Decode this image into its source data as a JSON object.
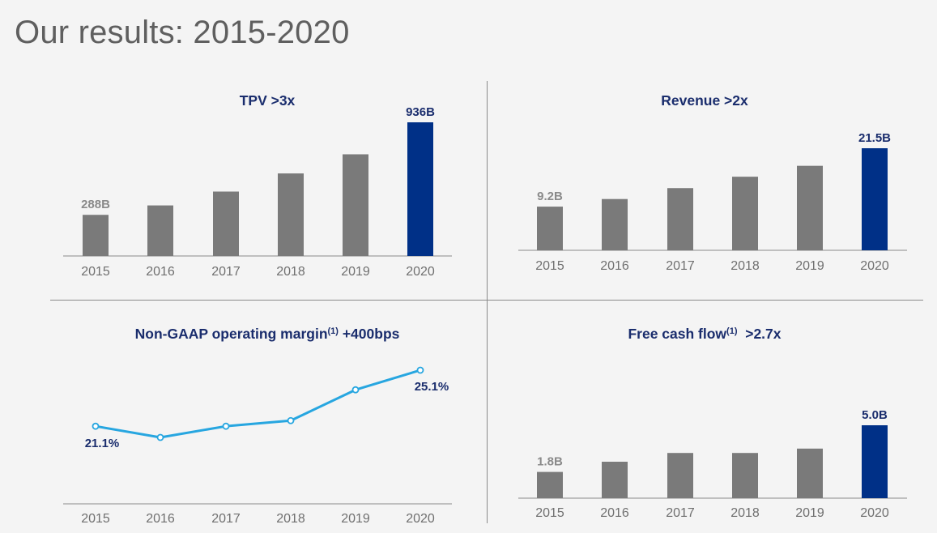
{
  "page": {
    "title": "Our results: 2015-2020"
  },
  "colors": {
    "bar": "#7a7a7a",
    "highlight": "#003087",
    "line": "#27a6e0",
    "title": "#1a2d6d",
    "axis": "#8a8a8a"
  },
  "chart_data": [
    {
      "id": "tpv",
      "type": "bar",
      "title": "TPV >3x",
      "title_sup": "",
      "title_suffix": "",
      "categories": [
        "2015",
        "2016",
        "2017",
        "2018",
        "2019",
        "2020"
      ],
      "values": [
        288,
        354,
        451,
        578,
        712,
        936
      ],
      "ylim": [
        0,
        936
      ],
      "data_labels": [
        {
          "index": 0,
          "text": "288B",
          "style": "grey"
        },
        {
          "index": 5,
          "text": "936B",
          "style": "blue"
        }
      ],
      "highlight_index": 5
    },
    {
      "id": "revenue",
      "type": "bar",
      "title": "Revenue >2x",
      "title_sup": "",
      "title_suffix": "",
      "categories": [
        "2015",
        "2016",
        "2017",
        "2018",
        "2019",
        "2020"
      ],
      "values": [
        9.2,
        10.8,
        13.1,
        15.5,
        17.8,
        21.5
      ],
      "ylim": [
        0,
        21.5
      ],
      "data_labels": [
        {
          "index": 0,
          "text": "9.2B",
          "style": "grey"
        },
        {
          "index": 5,
          "text": "21.5B",
          "style": "blue"
        }
      ],
      "highlight_index": 5
    },
    {
      "id": "margin",
      "type": "line",
      "title": "Non-GAAP operating margin",
      "title_sup": "(1)",
      "title_suffix": " +400bps",
      "categories": [
        "2015",
        "2016",
        "2017",
        "2018",
        "2019",
        "2020"
      ],
      "values": [
        21.1,
        20.3,
        21.1,
        21.5,
        23.7,
        25.1
      ],
      "ylim": [
        18.5,
        26.2
      ],
      "data_labels": [
        {
          "index": 0,
          "text": "21.1%",
          "style": "blue"
        },
        {
          "index": 5,
          "text": "25.1%",
          "style": "blue"
        }
      ]
    },
    {
      "id": "fcf",
      "type": "bar",
      "title": "Free cash flow",
      "title_sup": "(1)",
      "title_suffix": "  >2.7x",
      "categories": [
        "2015",
        "2016",
        "2017",
        "2018",
        "2019",
        "2020"
      ],
      "values": [
        1.8,
        2.5,
        3.1,
        3.1,
        3.4,
        5.0
      ],
      "ylim": [
        0,
        5.0
      ],
      "data_labels": [
        {
          "index": 0,
          "text": "1.8B",
          "style": "grey"
        },
        {
          "index": 5,
          "text": "5.0B",
          "style": "blue"
        }
      ],
      "highlight_index": 5
    }
  ]
}
